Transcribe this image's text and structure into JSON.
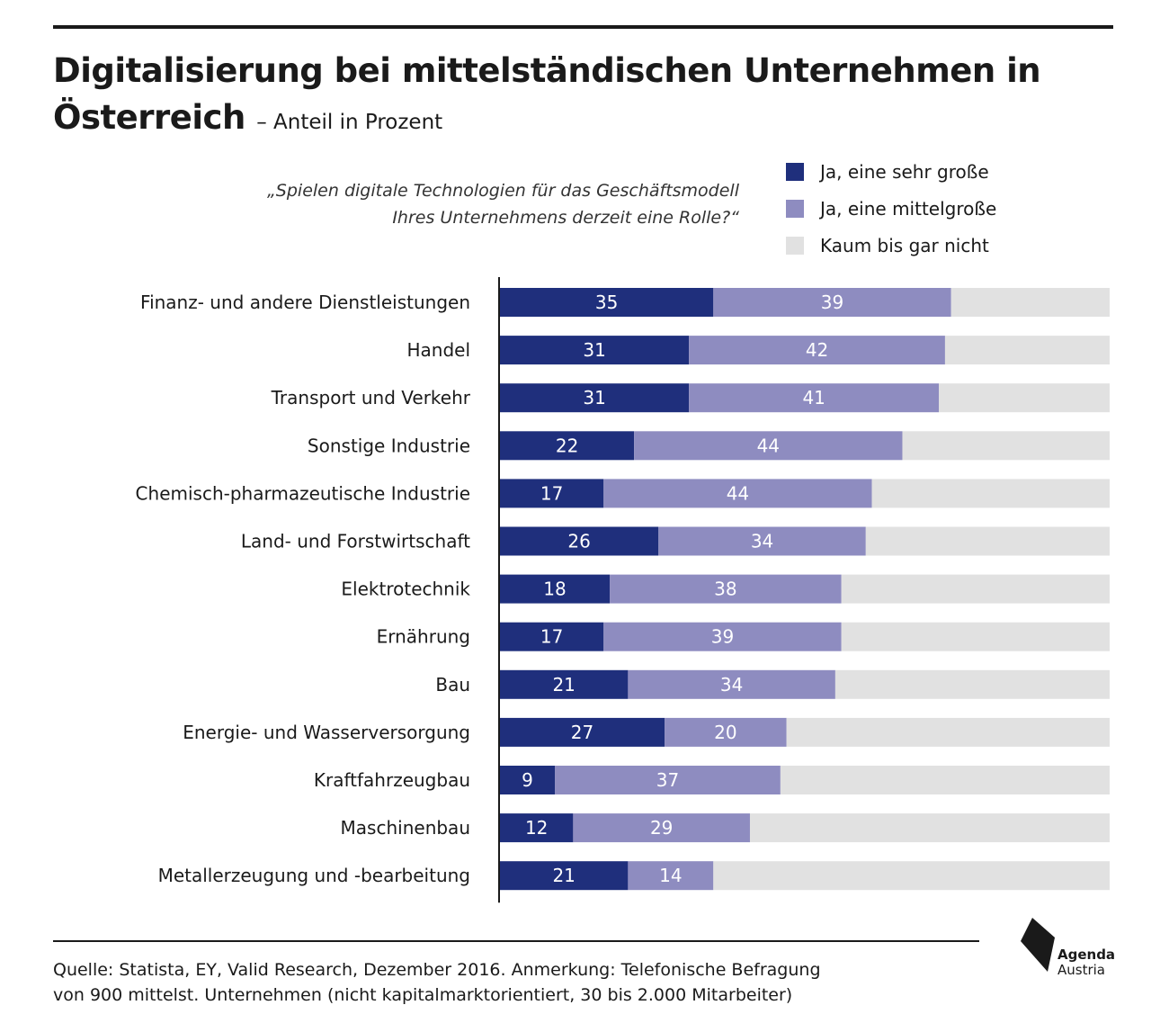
{
  "title": {
    "main": "Digitalisierung bei mittelständischen Unternehmen in Österreich",
    "sub": "– Anteil in Prozent"
  },
  "question": {
    "line1": "„Spielen digitale Technologien für das Geschäftsmodell",
    "line2": "Ihres Unternehmens derzeit eine Rolle?“"
  },
  "legend": [
    {
      "label": "Ja, eine sehr große",
      "color": "#1f2f7c"
    },
    {
      "label": "Ja, eine mittelgroße",
      "color": "#8e8cc0"
    },
    {
      "label": "Kaum bis gar nicht",
      "color": "#e1e1e1"
    }
  ],
  "chart_data": {
    "type": "bar",
    "orientation": "horizontal",
    "stacked": true,
    "xlim": [
      0,
      100
    ],
    "categories": [
      "Finanz- und andere Dienstleistungen",
      "Handel",
      "Transport und Verkehr",
      "Sonstige Industrie",
      "Chemisch-pharmazeutische Industrie",
      "Land- und Forstwirtschaft",
      "Elektrotechnik",
      "Ernährung",
      "Bau",
      "Energie- und Wasserversorgung",
      "Kraftfahrzeugbau",
      "Maschinenbau",
      "Metallerzeugung und -bearbeitung"
    ],
    "series": [
      {
        "name": "Ja, eine sehr große",
        "color": "#1f2f7c",
        "values": [
          35,
          31,
          31,
          22,
          17,
          26,
          18,
          17,
          21,
          27,
          9,
          12,
          21
        ]
      },
      {
        "name": "Ja, eine mittelgroße",
        "color": "#8e8cc0",
        "values": [
          39,
          42,
          41,
          44,
          44,
          34,
          38,
          39,
          34,
          20,
          37,
          29,
          14
        ]
      },
      {
        "name": "Kaum bis gar nicht",
        "color": "#e1e1e1",
        "values": [
          26,
          27,
          28,
          34,
          39,
          40,
          44,
          44,
          45,
          53,
          54,
          59,
          65
        ]
      }
    ],
    "value_labels": [
      true,
      true,
      false
    ],
    "grid": false
  },
  "source": {
    "line1": "Quelle: Statista, EY, Valid Research, Dezember 2016.  Anmerkung: Telefonische Befragung",
    "line2": "von 900 mittelst. Unternehmen (nicht kapitalmarktorientiert, 30 bis 2.000 Mitarbeiter)"
  },
  "logo": {
    "line1": "Agenda",
    "line2": "Austria"
  }
}
